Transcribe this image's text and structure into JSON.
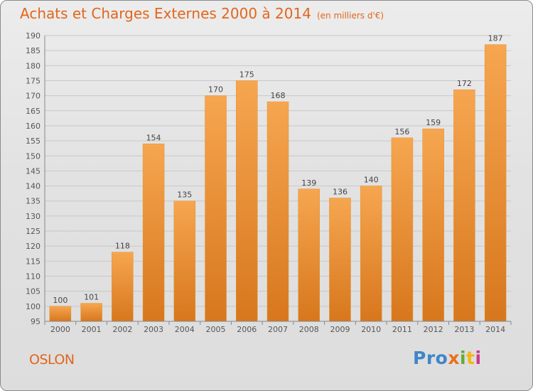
{
  "title": "Achats et Charges Externes 2000 à 2014",
  "unit_note": "(en milliers d'€)",
  "commune": "OSLON",
  "logo": {
    "part1": "Pro",
    "part2": "x",
    "part3": "i",
    "part4": "t",
    "part5": "i"
  },
  "colors": {
    "bar_light": "#f6a650",
    "bar_dark": "#d7771d",
    "title": "#e2661b"
  },
  "chart_data": {
    "type": "bar",
    "categories": [
      "2000",
      "2001",
      "2002",
      "2003",
      "2004",
      "2005",
      "2006",
      "2007",
      "2008",
      "2009",
      "2010",
      "2011",
      "2012",
      "2013",
      "2014"
    ],
    "values": [
      100,
      101,
      118,
      154,
      135,
      170,
      175,
      168,
      139,
      136,
      140,
      156,
      159,
      172,
      187
    ],
    "ylim": [
      95,
      190
    ],
    "yticks": [
      95,
      100,
      105,
      110,
      115,
      120,
      125,
      130,
      135,
      140,
      145,
      150,
      155,
      160,
      165,
      170,
      175,
      180,
      185,
      190
    ],
    "grid": true
  }
}
